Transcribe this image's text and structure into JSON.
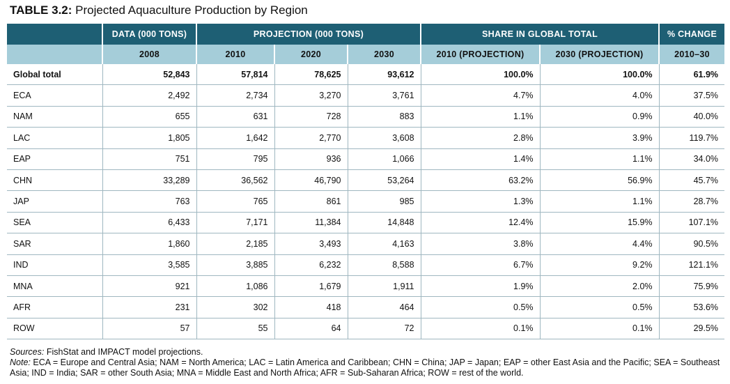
{
  "caption": {
    "label": "TABLE 3.2:",
    "title": "Projected Aquaculture Production by Region"
  },
  "header": {
    "groups": [
      "",
      "DATA (000 TONS)",
      "PROJECTION (000 TONS)",
      "SHARE IN GLOBAL TOTAL",
      "% CHANGE"
    ],
    "columns": [
      "",
      "2008",
      "2010",
      "2020",
      "2030",
      "2010 (PROJECTION)",
      "2030 (PROJECTION)",
      "2010–30"
    ]
  },
  "rows": [
    [
      "Global total",
      "52,843",
      "57,814",
      "78,625",
      "93,612",
      "100.0%",
      "100.0%",
      "61.9%"
    ],
    [
      "ECA",
      "2,492",
      "2,734",
      "3,270",
      "3,761",
      "4.7%",
      "4.0%",
      "37.5%"
    ],
    [
      "NAM",
      "655",
      "631",
      "728",
      "883",
      "1.1%",
      "0.9%",
      "40.0%"
    ],
    [
      "LAC",
      "1,805",
      "1,642",
      "2,770",
      "3,608",
      "2.8%",
      "3.9%",
      "119.7%"
    ],
    [
      "EAP",
      "751",
      "795",
      "936",
      "1,066",
      "1.4%",
      "1.1%",
      "34.0%"
    ],
    [
      "CHN",
      "33,289",
      "36,562",
      "46,790",
      "53,264",
      "63.2%",
      "56.9%",
      "45.7%"
    ],
    [
      "JAP",
      "763",
      "765",
      "861",
      "985",
      "1.3%",
      "1.1%",
      "28.7%"
    ],
    [
      "SEA",
      "6,433",
      "7,171",
      "11,384",
      "14,848",
      "12.4%",
      "15.9%",
      "107.1%"
    ],
    [
      "SAR",
      "1,860",
      "2,185",
      "3,493",
      "4,163",
      "3.8%",
      "4.4%",
      "90.5%"
    ],
    [
      "IND",
      "3,585",
      "3,885",
      "6,232",
      "8,588",
      "6.7%",
      "9.2%",
      "121.1%"
    ],
    [
      "MNA",
      "921",
      "1,086",
      "1,679",
      "1,911",
      "1.9%",
      "2.0%",
      "75.9%"
    ],
    [
      "AFR",
      "231",
      "302",
      "418",
      "464",
      "0.5%",
      "0.5%",
      "53.6%"
    ],
    [
      "ROW",
      "57",
      "55",
      "64",
      "72",
      "0.1%",
      "0.1%",
      "29.5%"
    ]
  ],
  "notes": {
    "sources_label": "Sources:",
    "sources_text": " FishStat and IMPACT model projections.",
    "note_label": "Note:",
    "note_text": " ECA = Europe and Central Asia; NAM = North America; LAC = Latin America and Caribbean; CHN = China; JAP = Japan; EAP = other East Asia and the Pacific; SEA = Southeast Asia; IND = India; SAR = other South Asia; MNA = Middle East and North Africa; AFR = Sub-Saharan Africa; ROW = rest of the world."
  },
  "colors": {
    "header_dark": "#1e5f74",
    "header_light": "#a5cdd9",
    "rule": "#9fb7c0"
  }
}
